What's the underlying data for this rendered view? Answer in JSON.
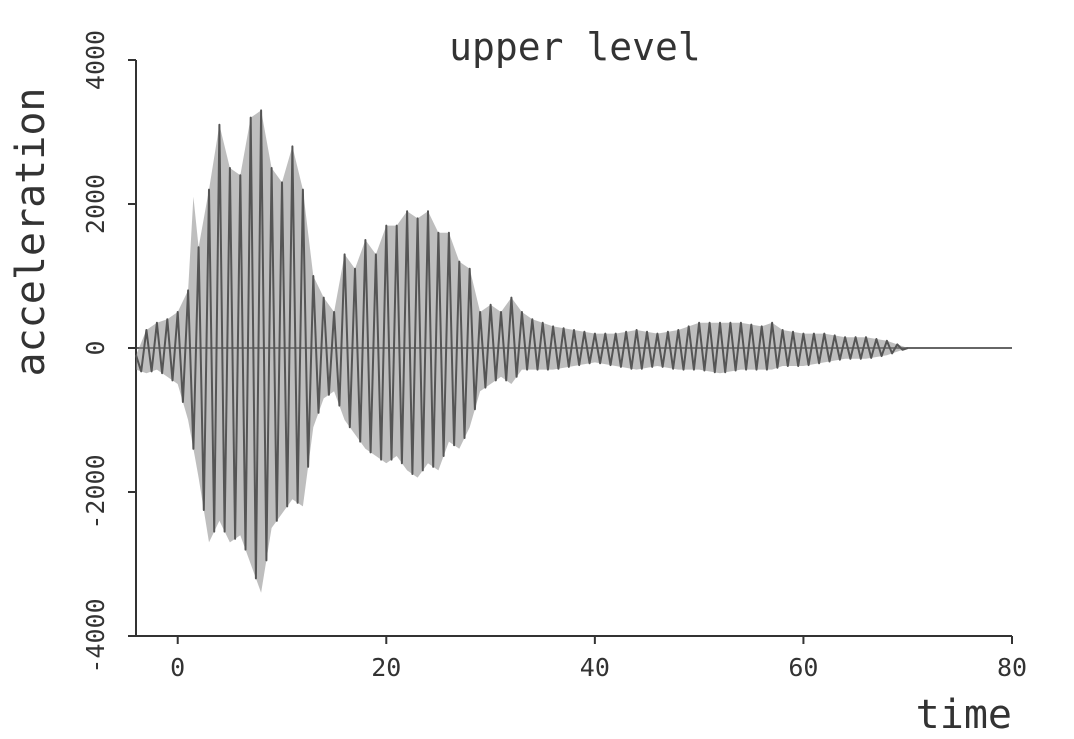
{
  "chart_data": {
    "type": "line",
    "title": "upper level",
    "xlabel": "time",
    "ylabel": "acceleration",
    "xlim": [
      -4,
      80
    ],
    "ylim": [
      -4000,
      4000
    ],
    "xticks": [
      0,
      20,
      40,
      60,
      80
    ],
    "yticks": [
      -4000,
      -2000,
      0,
      2000,
      4000
    ],
    "ytick_labels": [
      "-4000",
      "-2000",
      "0",
      "2000",
      "4000"
    ],
    "grid": false,
    "legend": "none",
    "colors": {
      "line": "#555555",
      "axis": "#333333",
      "baseline": "#333333"
    },
    "series": [
      {
        "x": [
          -4,
          -3,
          -2,
          -1,
          0,
          1,
          1.5,
          2,
          3,
          4,
          5,
          6,
          7,
          8,
          9,
          10,
          11,
          12,
          13,
          14,
          15,
          16,
          17,
          18,
          19,
          20,
          21,
          22,
          23,
          24,
          25,
          26,
          27,
          28,
          29,
          30,
          31,
          32,
          33,
          34,
          36,
          38,
          40,
          42,
          44,
          46,
          48,
          50,
          52,
          54,
          56,
          57,
          58,
          60,
          62,
          64,
          66,
          68,
          70
        ],
        "y": [
          -100,
          250,
          350,
          400,
          500,
          800,
          2100,
          1400,
          2200,
          3100,
          2500,
          2400,
          3200,
          3300,
          2500,
          2300,
          2800,
          2200,
          1000,
          700,
          500,
          1300,
          1100,
          1500,
          1300,
          1700,
          1700,
          1900,
          1800,
          1900,
          1600,
          1600,
          1200,
          1100,
          500,
          600,
          500,
          700,
          500,
          400,
          300,
          250,
          200,
          200,
          250,
          200,
          250,
          350,
          350,
          350,
          300,
          350,
          250,
          200,
          200,
          150,
          150,
          100,
          0
        ],
        "y_min": [
          -300,
          -350,
          -300,
          -400,
          -500,
          -1000,
          -1400,
          -1800,
          -2700,
          -2400,
          -2700,
          -2600,
          -3000,
          -3400,
          -2500,
          -2300,
          -2100,
          -2200,
          -1100,
          -700,
          -600,
          -1000,
          -1200,
          -1400,
          -1500,
          -1600,
          -1500,
          -1700,
          -1800,
          -1600,
          -1700,
          -1300,
          -1400,
          -1100,
          -600,
          -500,
          -400,
          -500,
          -300,
          -300,
          -300,
          -250,
          -200,
          -250,
          -300,
          -250,
          -300,
          -300,
          -350,
          -300,
          -300,
          -300,
          -250,
          -250,
          -200,
          -150,
          -150,
          -100,
          0
        ]
      }
    ]
  }
}
